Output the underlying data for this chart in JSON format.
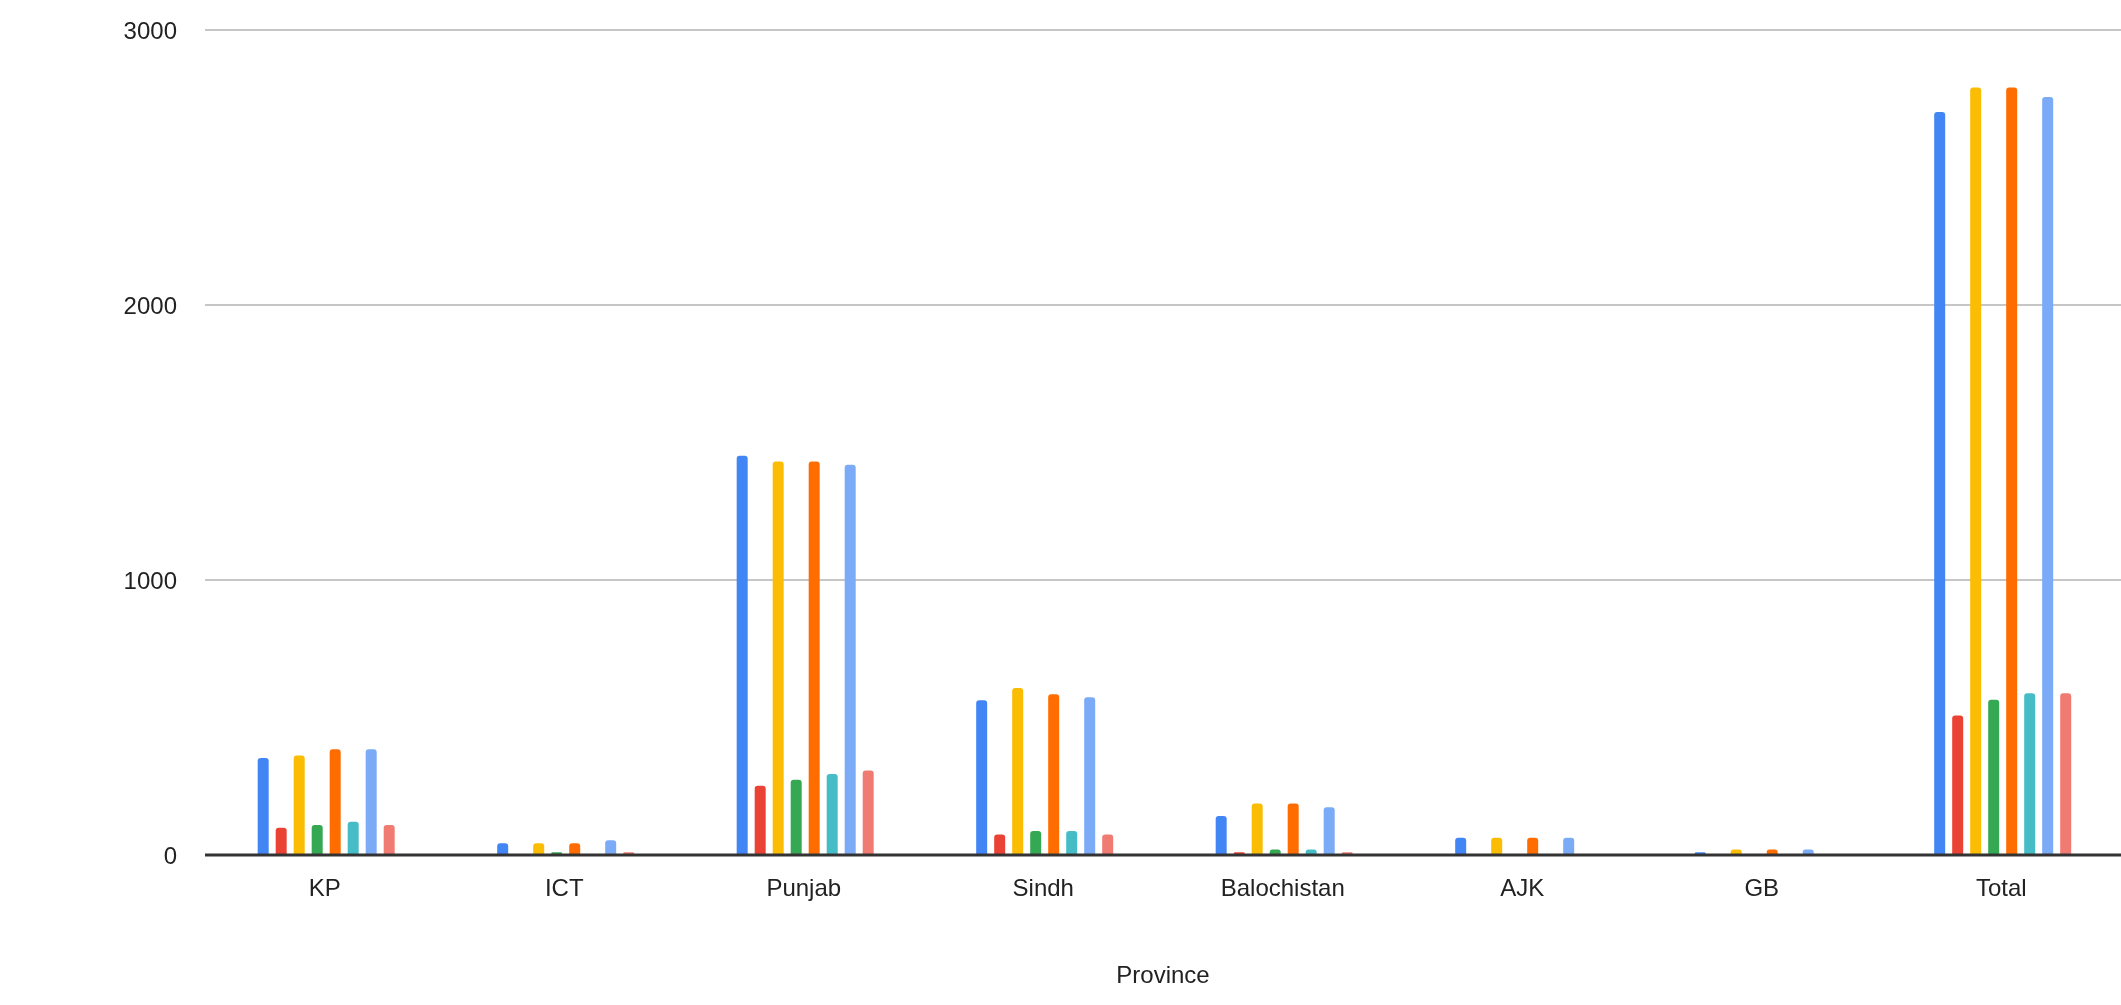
{
  "chart_data": {
    "type": "bar",
    "xlabel": "Province",
    "categories": [
      "KP",
      "ICT",
      "Punjab",
      "Sindh",
      "Balochistan",
      "AJK",
      "GB",
      "Total"
    ],
    "series": [
      {
        "color": "#4285f4",
        "values": [
          353,
          43,
          1452,
          563,
          142,
          63,
          10,
          2702
        ]
      },
      {
        "color": "#ea4335",
        "values": [
          99,
          0,
          252,
          75,
          10,
          0,
          0,
          507
        ]
      },
      {
        "color": "#fbbc04",
        "values": [
          362,
          43,
          1431,
          607,
          187,
          63,
          20,
          2791
        ]
      },
      {
        "color": "#34a853",
        "values": [
          109,
          10,
          274,
          87,
          20,
          0,
          0,
          565
        ]
      },
      {
        "color": "#ff6d01",
        "values": [
          385,
          43,
          1431,
          585,
          187,
          63,
          20,
          2791
        ]
      },
      {
        "color": "#46bdc6",
        "values": [
          121,
          0,
          295,
          87,
          20,
          0,
          0,
          588
        ]
      },
      {
        "color": "#7baaf7",
        "values": [
          385,
          54,
          1419,
          574,
          174,
          63,
          20,
          2756
        ]
      },
      {
        "color": "#f07b72",
        "values": [
          109,
          10,
          307,
          75,
          10,
          0,
          0,
          588
        ]
      }
    ],
    "ylim": [
      0,
      3000
    ],
    "yticks": [
      0,
      1000,
      2000,
      3000
    ],
    "grid": "y",
    "legend": false
  }
}
